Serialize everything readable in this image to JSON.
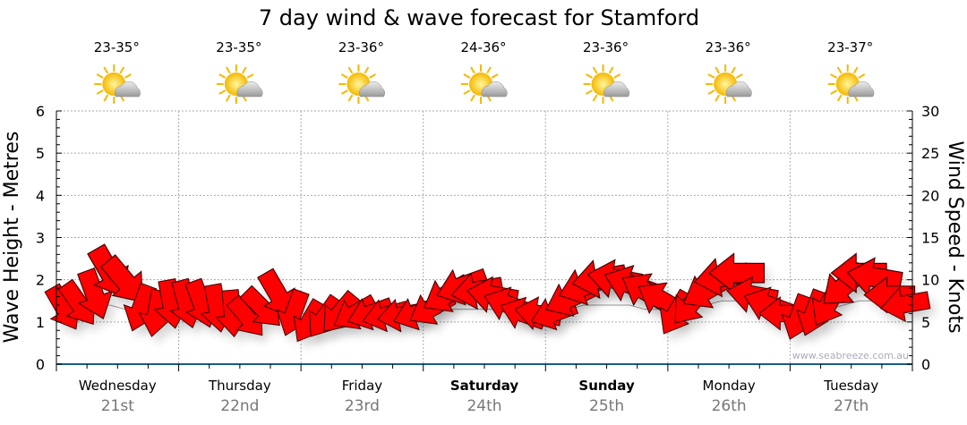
{
  "chart_data": {
    "type": "line",
    "title": "7 day wind & wave forecast for Stamford",
    "ylabel": "Wave Height - Metres",
    "y2label": "Wind Speed - Knots",
    "ylim": [
      0,
      6
    ],
    "y2lim": [
      0,
      30
    ],
    "yticks": [
      "0",
      "1",
      "2",
      "3",
      "4",
      "5",
      "6"
    ],
    "y2ticks": [
      "0",
      "5",
      "10",
      "15",
      "20",
      "25",
      "30"
    ],
    "grid": true,
    "watermark": "www.seabreeze.com.au",
    "days": [
      {
        "name": "Wednesday",
        "date": "21st",
        "bold": false,
        "temp": "23-35°"
      },
      {
        "name": "Thursday",
        "date": "22nd",
        "bold": false,
        "temp": "23-35°"
      },
      {
        "name": "Friday",
        "date": "23rd",
        "bold": false,
        "temp": "23-36°"
      },
      {
        "name": "Saturday",
        "date": "24th",
        "bold": true,
        "temp": "24-36°"
      },
      {
        "name": "Sunday",
        "date": "25th",
        "bold": true,
        "temp": "23-36°"
      },
      {
        "name": "Monday",
        "date": "26th",
        "bold": false,
        "temp": "23-36°"
      },
      {
        "name": "Tuesday",
        "date": "27th",
        "bold": false,
        "temp": "23-37°"
      }
    ],
    "series": [
      {
        "name": "Wind speed (knots)",
        "step_hours": 3,
        "values": [
          6.6,
          7.1,
          8.2,
          10.8,
          9.8,
          6.6,
          6.0,
          7.1,
          7.1,
          7.1,
          6.6,
          6.0,
          5.5,
          6.6,
          8.2,
          6.0,
          5.0,
          5.5,
          6.0,
          6.0,
          6.0,
          5.8,
          5.8,
          6.0,
          6.6,
          8.2,
          9.2,
          8.7,
          8.2,
          7.1,
          6.0,
          6.0,
          6.0,
          7.7,
          9.2,
          10.1,
          10.1,
          9.5,
          8.7,
          7.7,
          6.0,
          7.1,
          8.7,
          10.3,
          10.8,
          8.2,
          7.1,
          6.0,
          5.5,
          6.0,
          7.1,
          9.2,
          10.8,
          10.3,
          8.2,
          7.1
        ],
        "arrow_heading_deg": [
          150,
          145,
          160,
          150,
          140,
          200,
          190,
          170,
          165,
          160,
          170,
          175,
          140,
          135,
          150,
          200,
          210,
          215,
          220,
          240,
          250,
          255,
          260,
          250,
          240,
          240,
          250,
          260,
          280,
          290,
          290,
          280,
          250,
          245,
          250,
          260,
          280,
          290,
          300,
          300,
          210,
          220,
          240,
          260,
          270,
          280,
          290,
          270,
          200,
          200,
          210,
          230,
          270,
          280,
          270,
          260
        ]
      },
      {
        "name": "Wave height (m)",
        "step_hours": 3,
        "values": [
          1.6,
          1.5,
          1.4,
          1.4,
          1.3,
          1.3,
          1.3,
          1.3,
          1.3,
          1.3,
          1.2,
          1.2,
          1.2,
          1.2,
          1.2,
          1.2,
          1.2,
          1.2,
          1.2,
          1.2,
          1.2,
          1.2,
          1.2,
          1.2,
          1.2,
          1.3,
          1.3,
          1.3,
          1.3,
          1.3,
          1.3,
          1.2,
          1.2,
          1.3,
          1.4,
          1.4,
          1.4,
          1.4,
          1.3,
          1.3,
          1.2,
          1.3,
          1.4,
          1.5,
          1.5,
          1.4,
          1.3,
          1.2,
          1.2,
          1.2,
          1.3,
          1.4,
          1.5,
          1.5,
          1.4,
          1.3
        ]
      }
    ],
    "arrow_color": "#ff0000"
  }
}
